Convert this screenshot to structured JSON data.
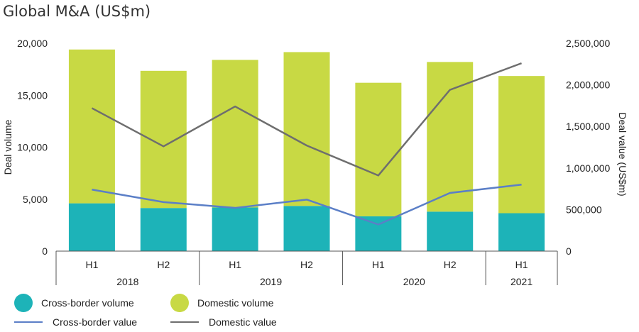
{
  "title": "Global M&A (US$m)",
  "chart_data": {
    "type": "bar",
    "stacked": true,
    "title": "Global M&A (US$m)",
    "ylabel": "Deal volume",
    "y2label": "Deal value (US$m)",
    "ylim": [
      0,
      20000
    ],
    "y2lim": [
      0,
      2500000
    ],
    "yticks": [
      "0",
      "5,000",
      "10,000",
      "15,000",
      "20,000"
    ],
    "y2ticks": [
      "0",
      "500,000",
      "1,000,000",
      "1,500,000",
      "2,000,000",
      "2,500,000"
    ],
    "categories": [
      "H1",
      "H2",
      "H1",
      "H2",
      "H1",
      "H2",
      "H1"
    ],
    "groups": [
      {
        "label": "2018",
        "span": 2
      },
      {
        "label": "2019",
        "span": 2
      },
      {
        "label": "2020",
        "span": 2
      },
      {
        "label": "2021",
        "span": 1
      }
    ],
    "series": [
      {
        "name": "Cross-border volume",
        "kind": "bar",
        "axis": "left",
        "color": "#1db3b8",
        "values": [
          4600,
          4150,
          4200,
          4350,
          3350,
          3800,
          3650
        ]
      },
      {
        "name": "Domestic volume",
        "kind": "bar",
        "axis": "left",
        "color": "#c8d944",
        "values": [
          14800,
          13200,
          14200,
          14800,
          12850,
          14400,
          13200
        ]
      },
      {
        "name": "Cross-border value",
        "kind": "line",
        "axis": "right",
        "color": "#5b7fc7",
        "values": [
          740000,
          590000,
          520000,
          620000,
          320000,
          700000,
          800000
        ]
      },
      {
        "name": "Domestic value",
        "kind": "line",
        "axis": "right",
        "color": "#6e6e6e",
        "values": [
          1720000,
          1260000,
          1740000,
          1270000,
          910000,
          1940000,
          2260000
        ]
      }
    ],
    "legend": [
      {
        "label": "Cross-border volume",
        "shape": "dot",
        "color": "#1db3b8"
      },
      {
        "label": "Domestic volume",
        "shape": "dot",
        "color": "#c8d944"
      },
      {
        "label": "Cross-border value",
        "shape": "line",
        "color": "#5b7fc7"
      },
      {
        "label": "Domestic value",
        "shape": "line",
        "color": "#6e6e6e"
      }
    ],
    "legend_position": "bottom",
    "grid": false
  }
}
